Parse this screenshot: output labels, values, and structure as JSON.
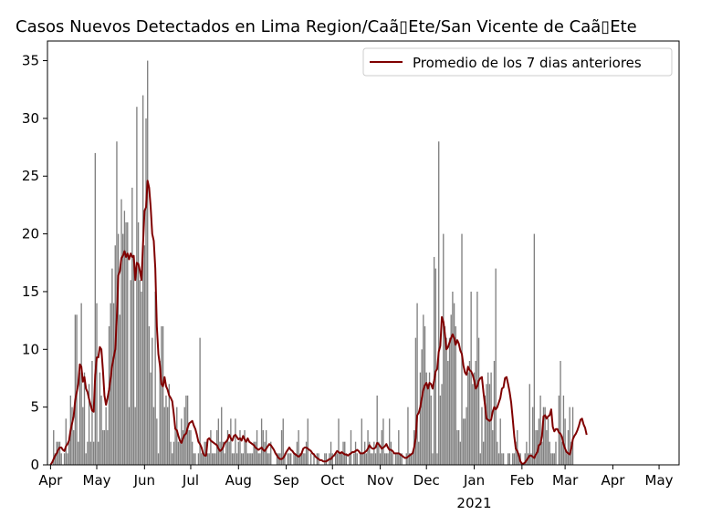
{
  "chart_data": {
    "type": "bar",
    "title": "Casos Nuevos Detectados en Lima Region/Caã▯Ete/San Vicente de Caã▯Ete",
    "xlabel": "",
    "ylabel": "",
    "ylim": [
      0,
      36.7
    ],
    "x_range": [
      "2020-03-30",
      "2021-05-14"
    ],
    "y_ticks": [
      0,
      5,
      10,
      15,
      20,
      25,
      30,
      35
    ],
    "x_ticks": [
      {
        "date": "2020-04-01",
        "label": "Apr"
      },
      {
        "date": "2020-05-01",
        "label": "May"
      },
      {
        "date": "2020-06-01",
        "label": "Jun"
      },
      {
        "date": "2020-07-01",
        "label": "Jul"
      },
      {
        "date": "2020-08-01",
        "label": "Aug"
      },
      {
        "date": "2020-09-01",
        "label": "Sep"
      },
      {
        "date": "2020-10-01",
        "label": "Oct"
      },
      {
        "date": "2020-11-01",
        "label": "Nov"
      },
      {
        "date": "2020-12-01",
        "label": "Dec"
      },
      {
        "date": "2021-01-01",
        "label": "Jan",
        "sublabel": "2021"
      },
      {
        "date": "2021-02-01",
        "label": "Feb"
      },
      {
        "date": "2021-03-01",
        "label": "Mar"
      },
      {
        "date": "2021-04-01",
        "label": "Apr"
      },
      {
        "date": "2021-05-01",
        "label": "May"
      }
    ],
    "bars": {
      "name": "",
      "color": "#808080",
      "start_date": "2020-04-01",
      "values": [
        0,
        0,
        3,
        1,
        2,
        2,
        2,
        1,
        0,
        1,
        4,
        1,
        2,
        6,
        5,
        3,
        13,
        13,
        2,
        8,
        14,
        5,
        8,
        1,
        2,
        7,
        2,
        9,
        2,
        27,
        14,
        2,
        8,
        6,
        3,
        3,
        5,
        3,
        12,
        14,
        17,
        14,
        19,
        28,
        20,
        13,
        23,
        20,
        22,
        21,
        21,
        5,
        16,
        24,
        18,
        5,
        31,
        21,
        16,
        15,
        32,
        19,
        30,
        35,
        12,
        8,
        11,
        5,
        15,
        4,
        1,
        9,
        12,
        12,
        5,
        6,
        5,
        7,
        2,
        1,
        2,
        3,
        5,
        2,
        2,
        4,
        3,
        5,
        6,
        6,
        3,
        3,
        2,
        1,
        1,
        0,
        1,
        11,
        1,
        1,
        2,
        2,
        1,
        1,
        3,
        1,
        1,
        1,
        3,
        4,
        2,
        5,
        2,
        1,
        2,
        3,
        2,
        4,
        1,
        1,
        4,
        1,
        2,
        3,
        1,
        1,
        3,
        2,
        1,
        1,
        1,
        1,
        2,
        2,
        3,
        1,
        1,
        4,
        3,
        2,
        3,
        1,
        1,
        2,
        0,
        0,
        0,
        1,
        1,
        1,
        3,
        4,
        1,
        0,
        1,
        1,
        1,
        0,
        1,
        1,
        2,
        3,
        1,
        1,
        1,
        1,
        2,
        4,
        0,
        1,
        0,
        1,
        0,
        1,
        1,
        0,
        0,
        0,
        1,
        1,
        0,
        1,
        2,
        1,
        0,
        1,
        1,
        4,
        1,
        1,
        2,
        2,
        1,
        0,
        1,
        3,
        0,
        1,
        2,
        1,
        0,
        1,
        4,
        1,
        2,
        1,
        3,
        2,
        1,
        1,
        2,
        1,
        6,
        2,
        1,
        3,
        4,
        1,
        1,
        1,
        4,
        2,
        1,
        0,
        1,
        1,
        3,
        1,
        1,
        0,
        0,
        1,
        5,
        1,
        1,
        1,
        3,
        11,
        14,
        2,
        8,
        10,
        13,
        12,
        8,
        7,
        8,
        6,
        1,
        18,
        17,
        1,
        28,
        6,
        7,
        20,
        12,
        11,
        9,
        11,
        13,
        15,
        14,
        12,
        3,
        3,
        2,
        20,
        4,
        4,
        5,
        8,
        9,
        15,
        7,
        8,
        9,
        15,
        11,
        1,
        5,
        2,
        6,
        7,
        8,
        7,
        8,
        3,
        9,
        17,
        2,
        1,
        4,
        1,
        1,
        0,
        0,
        1,
        1,
        0,
        1,
        1,
        2,
        3,
        1,
        1,
        0,
        0,
        1,
        2,
        1,
        7,
        1,
        5,
        20,
        3,
        3,
        4,
        6,
        2,
        5,
        5,
        3,
        4,
        2,
        1,
        1,
        1,
        2,
        0,
        6,
        9,
        2,
        6,
        4,
        1,
        3,
        5,
        2,
        5
      ]
    },
    "series": [
      {
        "name": "Promedio de los 7 dias anteriores",
        "color": "#800000",
        "start_date": "2020-04-01",
        "values": [
          0,
          0.2,
          0.5,
          0.8,
          1.0,
          1.3,
          1.5,
          1.5,
          1.3,
          1.2,
          1.6,
          1.8,
          2.1,
          3.0,
          3.6,
          4.2,
          5.6,
          6.3,
          7.0,
          8.7,
          8.5,
          7.2,
          7.6,
          6.6,
          6.3,
          5.7,
          5.2,
          4.7,
          4.6,
          7.8,
          9.3,
          9.3,
          10.2,
          10.0,
          8.2,
          6.0,
          5.2,
          5.8,
          6.5,
          7.5,
          8.6,
          9.3,
          10.0,
          12.7,
          16.4,
          16.8,
          17.9,
          18.1,
          18.5,
          18.0,
          18.3,
          17.8,
          18.3,
          18.0,
          18.1,
          16.0,
          17.5,
          17.4,
          16.8,
          16.0,
          19.0,
          22.0,
          22.3,
          24.6,
          24.0,
          22.3,
          20.0,
          19.4,
          17.0,
          12.0,
          9.6,
          8.6,
          7.0,
          6.8,
          7.6,
          6.8,
          6.5,
          6.0,
          5.8,
          5.5,
          4.4,
          3.1,
          3.0,
          2.5,
          2.1,
          1.9,
          2.3,
          2.6,
          2.7,
          3.2,
          3.6,
          3.7,
          3.8,
          3.4,
          3.1,
          2.6,
          2.0,
          1.8,
          1.5,
          1.0,
          0.8,
          0.8,
          2.2,
          2.3,
          2.1,
          2.0,
          1.9,
          1.8,
          1.7,
          1.4,
          1.2,
          1.3,
          1.5,
          1.9,
          2.0,
          2.2,
          2.6,
          2.3,
          2.1,
          2.5,
          2.6,
          2.4,
          2.2,
          2.3,
          2.1,
          2.5,
          2.2,
          2.0,
          2.3,
          2.0,
          1.9,
          1.8,
          1.7,
          1.5,
          1.4,
          1.3,
          1.4,
          1.5,
          1.3,
          1.2,
          1.4,
          1.6,
          1.8,
          1.7,
          1.5,
          1.3,
          1.0,
          0.8,
          0.6,
          0.5,
          0.5,
          0.6,
          0.8,
          1.1,
          1.3,
          1.5,
          1.3,
          1.2,
          1.0,
          0.9,
          0.8,
          0.7,
          0.8,
          1.0,
          1.4,
          1.5,
          1.5,
          1.4,
          1.3,
          1.2,
          1.0,
          0.9,
          0.7,
          0.6,
          0.5,
          0.4,
          0.4,
          0.3,
          0.3,
          0.3,
          0.4,
          0.5,
          0.5,
          0.7,
          0.8,
          1.0,
          1.2,
          1.1,
          1.0,
          1.1,
          1.0,
          0.9,
          0.9,
          0.8,
          0.9,
          1.0,
          1.1,
          1.1,
          1.2,
          1.3,
          1.2,
          1.0,
          1.0,
          1.0,
          1.1,
          1.2,
          1.4,
          1.7,
          1.5,
          1.4,
          1.4,
          1.5,
          1.9,
          1.8,
          1.6,
          1.4,
          1.5,
          1.6,
          1.8,
          1.5,
          1.3,
          1.3,
          1.2,
          1.0,
          1.0,
          1.0,
          1.0,
          0.9,
          0.8,
          0.7,
          0.6,
          0.6,
          0.7,
          0.8,
          0.9,
          1.0,
          1.5,
          2.3,
          4.3,
          4.5,
          5.0,
          5.8,
          6.5,
          6.9,
          7.1,
          6.6,
          7.1,
          7.0,
          6.6,
          7.3,
          8.1,
          8.3,
          9.8,
          10.3,
          12.8,
          12.4,
          11.3,
          10.0,
          10.2,
          10.6,
          11.0,
          11.3,
          11.0,
          10.4,
          10.8,
          10.5,
          9.9,
          9.6,
          8.6,
          8.0,
          7.8,
          8.5,
          8.2,
          8.1,
          7.8,
          7.3,
          6.6,
          6.8,
          7.3,
          7.5,
          7.6,
          6.3,
          5.2,
          4.0,
          3.9,
          3.8,
          3.9,
          4.6,
          5.0,
          4.8,
          5.0,
          5.4,
          5.8,
          6.6,
          6.7,
          7.5,
          7.6,
          7.0,
          6.3,
          5.4,
          4.0,
          2.5,
          1.4,
          1.2,
          0.8,
          0.3,
          0.1,
          0.1,
          0.2,
          0.4,
          0.6,
          0.8,
          0.8,
          0.7,
          0.6,
          0.9,
          1.1,
          1.7,
          1.8,
          2.5,
          4.2,
          4.3,
          4.0,
          4.2,
          4.3,
          4.8,
          3.3,
          2.9,
          3.1,
          3.1,
          2.8,
          2.7,
          2.4,
          1.8,
          1.4,
          1.1,
          1.0,
          0.9,
          1.4,
          2.2,
          2.5,
          2.7,
          3.0,
          3.4,
          3.9,
          4.0,
          3.5,
          3.2,
          2.6
        ]
      }
    ],
    "legend": {
      "placement": "top-right",
      "entries": [
        "Promedio de los 7 dias anteriores"
      ]
    },
    "grid": false
  }
}
